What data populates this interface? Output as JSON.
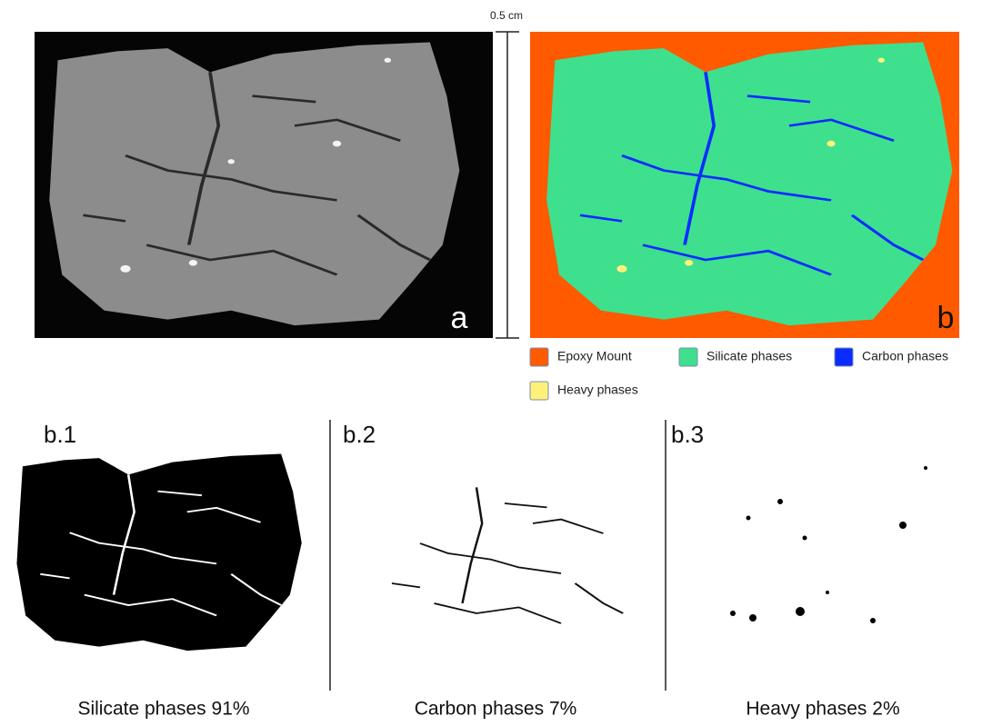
{
  "scale_bar": {
    "label": "0.5 cm"
  },
  "panels": [
    {
      "label": "a"
    },
    {
      "label": "b"
    }
  ],
  "legend": [
    {
      "label": "Epoxy Mount",
      "color": "#ff5a00"
    },
    {
      "label": "Silicate phases",
      "color": "#3ee08e"
    },
    {
      "label": "Carbon phases",
      "color": "#0a2cff"
    },
    {
      "label": "Heavy phases",
      "color": "#fff07a"
    }
  ],
  "subpanels": [
    {
      "label": "b.1",
      "caption": "Silicate phases 91%"
    },
    {
      "label": "b.2",
      "caption": "Carbon phases 7%"
    },
    {
      "label": "b.3",
      "caption": "Heavy phases 2%"
    }
  ]
}
